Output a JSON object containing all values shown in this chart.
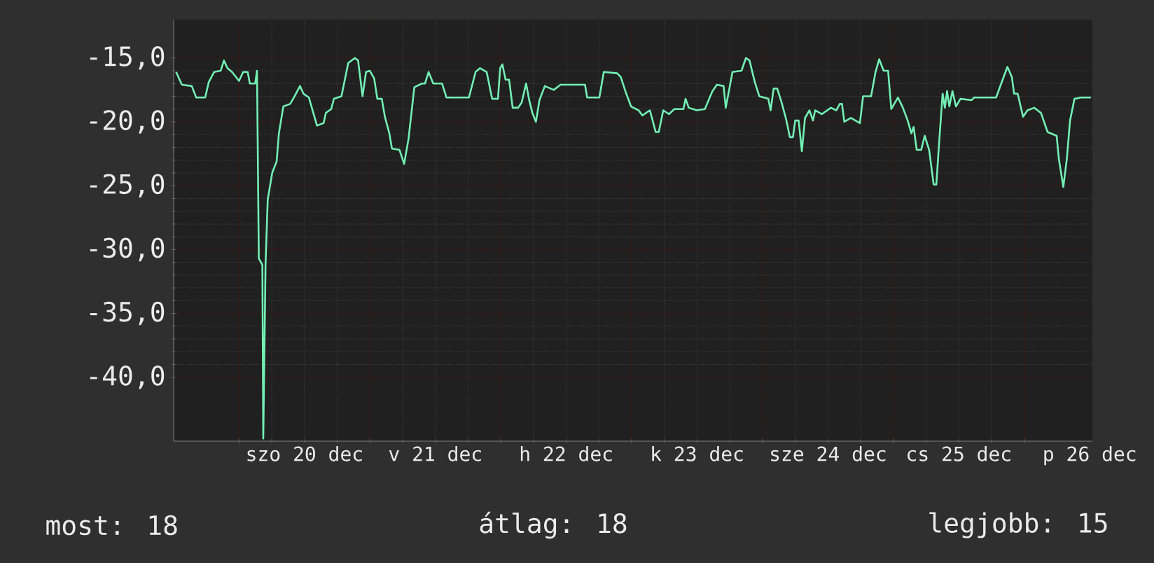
{
  "chart_data": {
    "type": "line",
    "color": "#72f0b4",
    "grid": true,
    "xlim": [
      "--12-19T12:00",
      "--12-26T12:29"
    ],
    "ylim": [
      -45,
      -12
    ],
    "xticks": [
      {
        "value": "--12-20T00:00",
        "label": null
      },
      {
        "value": "--12-21T00:00",
        "label": null
      },
      {
        "value": "--12-22T00:00",
        "label": null
      },
      {
        "value": "--12-23T00:00",
        "label": null
      },
      {
        "value": "--12-24T00:00",
        "label": null
      },
      {
        "value": "--12-25T00:00",
        "label": null
      },
      {
        "value": "--12-26T00:00",
        "label": null
      },
      {
        "value": "--12-20T12:00",
        "label": "szo 20 dec"
      },
      {
        "value": "--12-21T12:00",
        "label": "v 21 dec"
      },
      {
        "value": "--12-22T12:00",
        "label": "h 22 dec"
      },
      {
        "value": "--12-23T12:00",
        "label": "k 23 dec"
      },
      {
        "value": "--12-24T12:00",
        "label": "sze 24 dec"
      },
      {
        "value": "--12-25T12:00",
        "label": "cs 25 dec"
      },
      {
        "value": "--12-26T12:00",
        "label": "p 26 dec"
      }
    ],
    "yticks": [
      {
        "value": -15,
        "label": "-15,0"
      },
      {
        "value": -20,
        "label": "-20,0"
      },
      {
        "value": -25,
        "label": "-25,0"
      },
      {
        "value": -30,
        "label": "-30,0"
      },
      {
        "value": -35,
        "label": "-35,0"
      },
      {
        "value": -40,
        "label": "-40,0"
      }
    ],
    "annotations": [
      "most: 18",
      "átlag: 18",
      "legjobb: 15"
    ],
    "x": [
      "--12-19T12:27",
      "--12-19T12:52",
      "--12-19T13:31",
      "--12-19T15:19",
      "--12-19T16:08",
      "--12-19T17:47",
      "--12-19T18:26",
      "--12-19T19:25",
      "--12-19T20:38",
      "--12-19T21:13",
      "--12-19T21:52",
      "--12-19T22:42",
      "--12-19T23:59",
      "--12-20T00:45",
      "--12-20T01:34",
      "--12-20T01:58",
      "--12-20T02:57",
      "--12-20T03:17",
      "--12-20T03:37",
      "--12-20T04:16",
      "--12-20T04:26",
      "--12-20T04:51",
      "--12-20T05:15",
      "--12-20T06:04",
      "--12-20T06:53",
      "--12-20T07:18",
      "--12-20T08:07",
      "--12-20T09:22",
      "--12-20T10:11",
      "--12-20T11:10",
      "--12-20T11:48",
      "--12-20T12:48",
      "--12-20T14:17",
      "--12-20T15:30",
      "--12-20T15:55",
      "--12-20T16:54",
      "--12-20T17:23",
      "--12-20T18:46",
      "--12-20T20:01",
      "--12-20T21:14",
      "--12-20T21:49",
      "--12-20T22:38",
      "--12-20T23:17",
      "--12-20T23:57",
      "--12-21T00:46",
      "--12-21T01:21",
      "--12-21T02:10",
      "--12-21T02:44",
      "--12-21T03:33",
      "--12-21T04:02",
      "--12-21T05:25",
      "--12-21T06:16",
      "--12-21T07:05",
      "--12-21T08:08",
      "--12-21T09:32",
      "--12-21T10:06",
      "--12-21T10:45",
      "--12-21T11:36",
      "--12-21T13:13",
      "--12-21T14:02",
      "--12-21T18:09",
      "--12-21T19:22",
      "--12-21T20:11",
      "--12-21T21:24",
      "--12-21T22:24",
      "--12-21T23:28",
      "--12-21T23:53",
      "--12-22T00:17",
      "--12-22T00:52",
      "--12-22T01:31",
      "--12-22T02:10",
      "--12-22T03:09",
      "--12-22T03:49",
      "--12-22T04:38",
      "--12-22T05:12",
      "--12-22T05:47",
      "--12-22T06:26",
      "--12-22T07:05",
      "--12-22T08:04",
      "--12-22T09:42",
      "--12-22T10:57",
      "--12-22T15:26",
      "--12-22T15:50",
      "--12-22T18:04",
      "--12-22T18:53",
      "--12-22T21:20",
      "--12-22T22:00",
      "--12-22T23:00",
      "--12-22T23:53",
      "--12-23T01:16",
      "--12-23T01:57",
      "--12-23T03:20",
      "--12-23T04:24",
      "--12-23T04:58",
      "--12-23T05:47",
      "--12-23T06:50",
      "--12-23T07:49",
      "--12-23T09:29",
      "--12-23T09:53",
      "--12-23T10:28",
      "--12-23T11:56",
      "--12-23T13:25",
      "--12-23T14:48",
      "--12-23T15:37",
      "--12-23T16:51",
      "--12-23T17:15",
      "--12-23T18:29",
      "--12-23T20:08",
      "--12-23T20:57",
      "--12-23T21:36",
      "--12-23T22:35",
      "--12-23T23:24",
      "--12-24T01:03",
      "--12-24T01:28",
      "--12-24T02:02",
      "--12-24T02:41",
      "--12-24T03:30",
      "--12-24T04:19",
      "--12-24T05:00",
      "--12-24T05:34",
      "--12-24T05:59",
      "--12-24T06:37",
      "--12-24T07:12",
      "--12-24T07:47",
      "--12-24T08:36",
      "--12-24T09:14",
      "--12-24T09:39",
      "--12-24T10:52",
      "--12-24T12:32",
      "--12-24T13:31",
      "--12-24T14:10",
      "--12-24T14:34",
      "--12-24T14:59",
      "--12-24T16:12",
      "--12-24T17:51",
      "--12-24T18:26",
      "--12-24T19:54",
      "--12-24T20:43",
      "--12-24T21:23",
      "--12-24T22:12",
      "--12-24T23:01",
      "--12-24T23:36",
      "--12-25T00:49",
      "--12-25T01:38",
      "--12-25T02:37",
      "--12-25T03:17",
      "--12-25T03:42",
      "--12-25T04:16",
      "--12-25T05:05",
      "--12-25T05:44",
      "--12-25T06:33",
      "--12-25T07:22",
      "--12-25T07:52",
      "--12-25T08:21",
      "--12-25T09:01",
      "--12-25T09:26",
      "--12-25T09:50",
      "--12-25T10:15",
      "--12-25T10:49",
      "--12-25T11:28",
      "--12-25T12:17",
      "--12-25T14:21",
      "--12-25T14:46",
      "--12-25T17:12",
      "--12-25T18:50",
      "--12-25T19:41",
      "--12-25T20:54",
      "--12-25T21:43",
      "--12-25T22:08",
      "--12-25T22:47",
      "--12-25T23:46",
      "--12-26T00:35",
      "--12-26T01:49",
      "--12-26T03:03",
      "--12-26T04:16",
      "--12-26T05:56",
      "--12-26T06:20",
      "--12-26T07:09",
      "--12-26T07:48",
      "--12-26T08:23",
      "--12-26T09:12",
      "--12-26T10:25",
      "--12-26T12:13"
    ],
    "values": [
      -16.1,
      -16.5,
      -17.1,
      -17.2,
      -18.1,
      -18.1,
      -16.9,
      -16.1,
      -16.0,
      -15.2,
      -15.8,
      -16.1,
      -16.8,
      -16.1,
      -16.1,
      -17.0,
      -17.0,
      -16.0,
      -30.7,
      -31.2,
      -44.8,
      -31.2,
      -26.1,
      -24.0,
      -23.1,
      -20.9,
      -18.8,
      -18.6,
      -18.0,
      -17.2,
      -17.8,
      -18.1,
      -20.3,
      -20.1,
      -19.3,
      -19.0,
      -18.2,
      -18.0,
      -15.4,
      -15.0,
      -15.2,
      -18.0,
      -16.1,
      -16.0,
      -16.6,
      -18.2,
      -18.2,
      -19.6,
      -20.9,
      -22.1,
      -22.2,
      -23.3,
      -21.3,
      -17.3,
      -17.0,
      -17.0,
      -16.1,
      -17.0,
      -17.0,
      -18.1,
      -18.1,
      -16.1,
      -15.8,
      -16.1,
      -18.2,
      -18.2,
      -15.8,
      -15.5,
      -16.7,
      -16.7,
      -18.9,
      -18.9,
      -18.5,
      -17.0,
      -18.3,
      -19.3,
      -20.0,
      -18.3,
      -17.2,
      -17.5,
      -17.1,
      -17.1,
      -18.1,
      -18.1,
      -16.1,
      -16.2,
      -16.5,
      -17.8,
      -18.8,
      -19.1,
      -19.5,
      -19.1,
      -20.8,
      -20.8,
      -19.1,
      -19.4,
      -19.0,
      -19.0,
      -18.2,
      -18.9,
      -19.1,
      -19.0,
      -17.6,
      -17.1,
      -17.2,
      -18.9,
      -16.1,
      -16.0,
      -15.0,
      -15.2,
      -16.9,
      -18.0,
      -18.2,
      -19.1,
      -17.4,
      -17.4,
      -18.5,
      -19.8,
      -21.2,
      -21.2,
      -19.9,
      -19.9,
      -22.3,
      -19.7,
      -19.1,
      -19.9,
      -19.1,
      -19.4,
      -18.9,
      -19.1,
      -18.6,
      -18.6,
      -20.0,
      -19.7,
      -20.1,
      -18.0,
      -18.0,
      -16.1,
      -15.1,
      -16.0,
      -16.0,
      -19.0,
      -18.1,
      -18.8,
      -19.9,
      -20.9,
      -20.4,
      -22.2,
      -22.2,
      -21.1,
      -22.2,
      -24.9,
      -24.9,
      -21.8,
      -17.8,
      -18.9,
      -17.6,
      -18.8,
      -17.6,
      -18.8,
      -18.2,
      -18.3,
      -18.1,
      -18.1,
      -18.1,
      -17.1,
      -15.7,
      -16.5,
      -17.8,
      -17.8,
      -19.6,
      -19.1,
      -18.9,
      -19.3,
      -20.8,
      -21.1,
      -22.9,
      -25.1,
      -22.9,
      -19.9,
      -18.2,
      -18.1,
      -18.1
    ]
  }
}
